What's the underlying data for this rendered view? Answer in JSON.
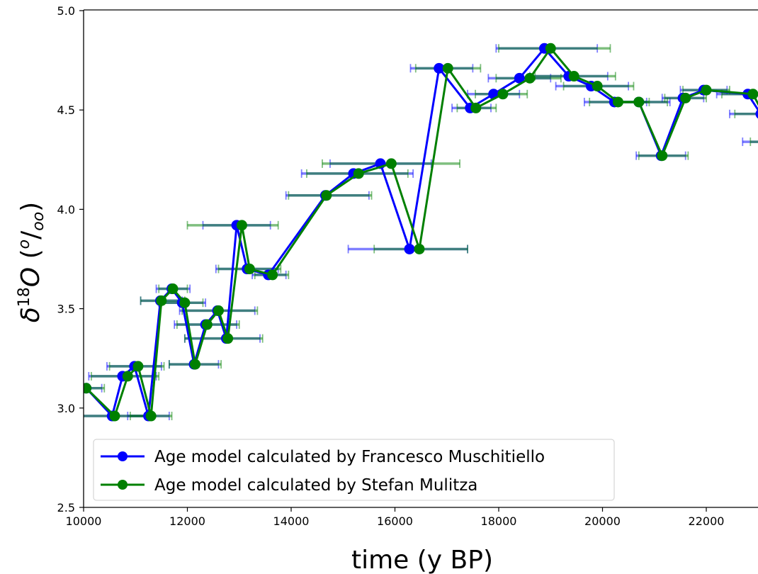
{
  "chart_data": {
    "type": "line",
    "xlabel": "time (y BP)",
    "ylabel": "δ18O (o/oo)",
    "xlim": [
      10000,
      23000
    ],
    "ylim": [
      2.5,
      5.0
    ],
    "xticks": [
      "10000",
      "12000",
      "14000",
      "16000",
      "18000",
      "20000",
      "22000"
    ],
    "yticks": [
      "2.5",
      "3.0",
      "3.5",
      "4.0",
      "4.5",
      "5.0"
    ],
    "legend_position": "lower-left",
    "series": [
      {
        "name": "Age model calculated by Francesco Muschitiello",
        "color": "#0000ff",
        "points": [
          {
            "x": 10050,
            "y": 3.1,
            "xmin": 9800,
            "xmax": 10350
          },
          {
            "x": 10550,
            "y": 2.96,
            "xmin": 9900,
            "xmax": 11200
          },
          {
            "x": 10750,
            "y": 3.16,
            "xmin": 10100,
            "xmax": 11400
          },
          {
            "x": 10980,
            "y": 3.21,
            "xmin": 10450,
            "xmax": 11500
          },
          {
            "x": 11250,
            "y": 2.96,
            "xmin": 10850,
            "xmax": 11650
          },
          {
            "x": 11480,
            "y": 3.54,
            "xmin": 11100,
            "xmax": 11900
          },
          {
            "x": 11700,
            "y": 3.6,
            "xmin": 11400,
            "xmax": 12050
          },
          {
            "x": 11900,
            "y": 3.53,
            "xmin": 11450,
            "xmax": 12350
          },
          {
            "x": 12130,
            "y": 3.22,
            "xmin": 11650,
            "xmax": 12600
          },
          {
            "x": 12350,
            "y": 3.42,
            "xmin": 11750,
            "xmax": 12950
          },
          {
            "x": 12580,
            "y": 3.49,
            "xmin": 11850,
            "xmax": 13300
          },
          {
            "x": 12750,
            "y": 3.35,
            "xmin": 11950,
            "xmax": 13400
          },
          {
            "x": 12950,
            "y": 3.92,
            "xmin": 12300,
            "xmax": 13600
          },
          {
            "x": 13150,
            "y": 3.7,
            "xmin": 12550,
            "xmax": 13750
          },
          {
            "x": 13560,
            "y": 3.67,
            "xmin": 13250,
            "xmax": 13900
          },
          {
            "x": 14660,
            "y": 4.07,
            "xmin": 13900,
            "xmax": 15500
          },
          {
            "x": 15200,
            "y": 4.18,
            "xmin": 14200,
            "xmax": 16350
          },
          {
            "x": 15720,
            "y": 4.23,
            "xmin": 14750,
            "xmax": 16700
          },
          {
            "x": 16280,
            "y": 3.8,
            "xmin": 15100,
            "xmax": 17400
          },
          {
            "x": 16850,
            "y": 4.71,
            "xmin": 16300,
            "xmax": 17500
          },
          {
            "x": 17450,
            "y": 4.51,
            "xmin": 17100,
            "xmax": 17850
          },
          {
            "x": 17900,
            "y": 4.58,
            "xmin": 17400,
            "xmax": 18400
          },
          {
            "x": 18400,
            "y": 4.66,
            "xmin": 17800,
            "xmax": 19000
          },
          {
            "x": 18880,
            "y": 4.81,
            "xmin": 17950,
            "xmax": 19900
          },
          {
            "x": 19350,
            "y": 4.67,
            "xmin": 18600,
            "xmax": 20100
          },
          {
            "x": 19780,
            "y": 4.62,
            "xmin": 19100,
            "xmax": 20500
          },
          {
            "x": 20230,
            "y": 4.54,
            "xmin": 19650,
            "xmax": 20850
          },
          {
            "x": 20700,
            "y": 4.54,
            "xmin": 20200,
            "xmax": 21300
          },
          {
            "x": 21130,
            "y": 4.27,
            "xmin": 20650,
            "xmax": 21600
          },
          {
            "x": 21550,
            "y": 4.56,
            "xmin": 21150,
            "xmax": 21950
          },
          {
            "x": 21950,
            "y": 4.6,
            "xmin": 21500,
            "xmax": 22400
          },
          {
            "x": 22800,
            "y": 4.58,
            "xmin": 22200,
            "xmax": 23200
          },
          {
            "x": 23050,
            "y": 4.48,
            "xmin": 22450,
            "xmax": 23400
          },
          {
            "x": 23200,
            "y": 4.34,
            "xmin": 22700,
            "xmax": 23500
          }
        ]
      },
      {
        "name": "Age model calculated by Stefan Mulitza",
        "color": "#008000",
        "points": [
          {
            "x": 10050,
            "y": 3.1,
            "xmin": 9800,
            "xmax": 10400
          },
          {
            "x": 10600,
            "y": 2.96,
            "xmin": 9950,
            "xmax": 11250
          },
          {
            "x": 10850,
            "y": 3.16,
            "xmin": 10150,
            "xmax": 11450
          },
          {
            "x": 11050,
            "y": 3.21,
            "xmin": 10500,
            "xmax": 11550
          },
          {
            "x": 11300,
            "y": 2.96,
            "xmin": 10900,
            "xmax": 11700
          },
          {
            "x": 11500,
            "y": 3.54,
            "xmin": 11100,
            "xmax": 11950
          },
          {
            "x": 11720,
            "y": 3.6,
            "xmin": 11450,
            "xmax": 12000
          },
          {
            "x": 11950,
            "y": 3.53,
            "xmin": 11500,
            "xmax": 12300
          },
          {
            "x": 12150,
            "y": 3.22,
            "xmin": 11650,
            "xmax": 12650
          },
          {
            "x": 12380,
            "y": 3.42,
            "xmin": 11800,
            "xmax": 13000
          },
          {
            "x": 12600,
            "y": 3.49,
            "xmin": 11900,
            "xmax": 13350
          },
          {
            "x": 12780,
            "y": 3.35,
            "xmin": 11950,
            "xmax": 13450
          },
          {
            "x": 13050,
            "y": 3.92,
            "xmin": 12000,
            "xmax": 13750
          },
          {
            "x": 13200,
            "y": 3.7,
            "xmin": 12600,
            "xmax": 13800
          },
          {
            "x": 13640,
            "y": 3.67,
            "xmin": 13300,
            "xmax": 13950
          },
          {
            "x": 14680,
            "y": 4.07,
            "xmin": 13950,
            "xmax": 15550
          },
          {
            "x": 15300,
            "y": 4.18,
            "xmin": 14300,
            "xmax": 16250
          },
          {
            "x": 15930,
            "y": 4.23,
            "xmin": 14600,
            "xmax": 17250
          },
          {
            "x": 16470,
            "y": 3.8,
            "xmin": 15600,
            "xmax": 17400
          },
          {
            "x": 17020,
            "y": 4.71,
            "xmin": 16400,
            "xmax": 17650
          },
          {
            "x": 17560,
            "y": 4.51,
            "xmin": 17200,
            "xmax": 17950
          },
          {
            "x": 18080,
            "y": 4.58,
            "xmin": 17550,
            "xmax": 18550
          },
          {
            "x": 18600,
            "y": 4.66,
            "xmin": 17950,
            "xmax": 19200
          },
          {
            "x": 19000,
            "y": 4.81,
            "xmin": 18000,
            "xmax": 20150
          },
          {
            "x": 19450,
            "y": 4.67,
            "xmin": 18700,
            "xmax": 20250
          },
          {
            "x": 19900,
            "y": 4.62,
            "xmin": 19250,
            "xmax": 20600
          },
          {
            "x": 20300,
            "y": 4.54,
            "xmin": 19750,
            "xmax": 20900
          },
          {
            "x": 20700,
            "y": 4.54,
            "xmin": 20250,
            "xmax": 21250
          },
          {
            "x": 21150,
            "y": 4.27,
            "xmin": 20700,
            "xmax": 21650
          },
          {
            "x": 21600,
            "y": 4.56,
            "xmin": 21200,
            "xmax": 22000
          },
          {
            "x": 22000,
            "y": 4.6,
            "xmin": 21550,
            "xmax": 22450
          },
          {
            "x": 22900,
            "y": 4.58,
            "xmin": 22300,
            "xmax": 23300
          },
          {
            "x": 23100,
            "y": 4.48,
            "xmin": 22550,
            "xmax": 23450
          },
          {
            "x": 23250,
            "y": 4.34,
            "xmin": 22850,
            "xmax": 23550
          }
        ]
      }
    ]
  }
}
